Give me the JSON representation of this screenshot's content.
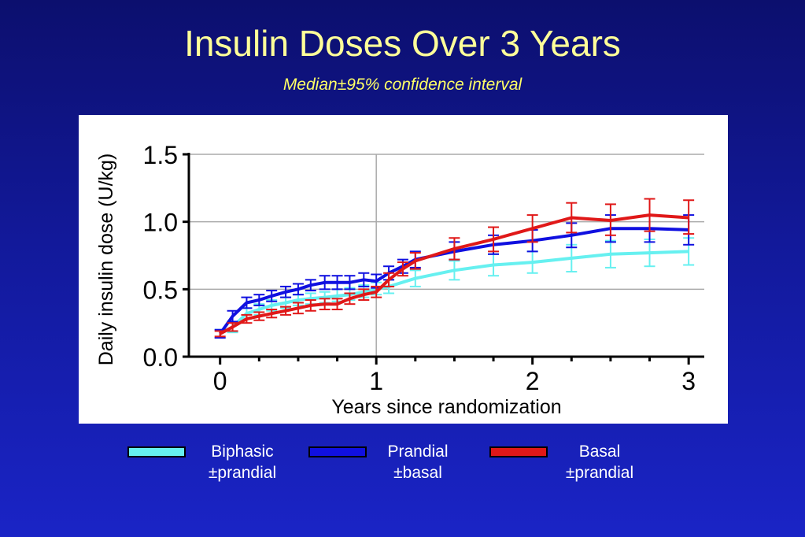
{
  "slide": {
    "title": "Insulin Doses Over 3 Years",
    "subtitle": "Median±95% confidence interval"
  },
  "chart_data": {
    "type": "line",
    "xlabel": "Years since randomization",
    "ylabel": "Daily insulin dose (U/kg)",
    "xlim": [
      -0.2,
      3.1
    ],
    "ylim": [
      0,
      1.5
    ],
    "x_ticks": [
      "0",
      "1",
      "2",
      "3"
    ],
    "y_ticks": [
      "0.0",
      "0.5",
      "1.0",
      "1.5"
    ],
    "grid": "horizontal at 0.5, 1.0, 1.5; vertical at x=1",
    "legend_position": "below",
    "series": [
      {
        "name": "Biphasic ±prandial",
        "color": "#66f0f0",
        "points": [
          {
            "x": 0.0,
            "y": 0.17,
            "lo": 0.14,
            "hi": 0.2
          },
          {
            "x": 0.08,
            "y": 0.22,
            "lo": 0.18,
            "hi": 0.26
          },
          {
            "x": 0.17,
            "y": 0.32,
            "lo": 0.28,
            "hi": 0.36
          },
          {
            "x": 0.25,
            "y": 0.35,
            "lo": 0.31,
            "hi": 0.39
          },
          {
            "x": 0.33,
            "y": 0.38,
            "lo": 0.34,
            "hi": 0.42
          },
          {
            "x": 0.42,
            "y": 0.4,
            "lo": 0.36,
            "hi": 0.44
          },
          {
            "x": 0.5,
            "y": 0.42,
            "lo": 0.38,
            "hi": 0.46
          },
          {
            "x": 0.58,
            "y": 0.43,
            "lo": 0.39,
            "hi": 0.47
          },
          {
            "x": 0.67,
            "y": 0.44,
            "lo": 0.4,
            "hi": 0.48
          },
          {
            "x": 0.75,
            "y": 0.45,
            "lo": 0.41,
            "hi": 0.5
          },
          {
            "x": 0.83,
            "y": 0.46,
            "lo": 0.42,
            "hi": 0.51
          },
          {
            "x": 0.92,
            "y": 0.48,
            "lo": 0.44,
            "hi": 0.53
          },
          {
            "x": 1.0,
            "y": 0.5,
            "lo": 0.46,
            "hi": 0.55
          },
          {
            "x": 1.08,
            "y": 0.52,
            "lo": 0.47,
            "hi": 0.57
          },
          {
            "x": 1.25,
            "y": 0.58,
            "lo": 0.52,
            "hi": 0.64
          },
          {
            "x": 1.5,
            "y": 0.64,
            "lo": 0.57,
            "hi": 0.71
          },
          {
            "x": 1.75,
            "y": 0.68,
            "lo": 0.6,
            "hi": 0.76
          },
          {
            "x": 2.0,
            "y": 0.7,
            "lo": 0.62,
            "hi": 0.78
          },
          {
            "x": 2.25,
            "y": 0.73,
            "lo": 0.63,
            "hi": 0.83
          },
          {
            "x": 2.5,
            "y": 0.76,
            "lo": 0.66,
            "hi": 0.86
          },
          {
            "x": 2.75,
            "y": 0.77,
            "lo": 0.67,
            "hi": 0.87
          },
          {
            "x": 3.0,
            "y": 0.78,
            "lo": 0.68,
            "hi": 0.88
          }
        ]
      },
      {
        "name": "Prandial ±basal",
        "color": "#1010e0",
        "points": [
          {
            "x": 0.0,
            "y": 0.17,
            "lo": 0.14,
            "hi": 0.2
          },
          {
            "x": 0.08,
            "y": 0.3,
            "lo": 0.26,
            "hi": 0.34
          },
          {
            "x": 0.17,
            "y": 0.4,
            "lo": 0.36,
            "hi": 0.44
          },
          {
            "x": 0.25,
            "y": 0.42,
            "lo": 0.38,
            "hi": 0.46
          },
          {
            "x": 0.33,
            "y": 0.45,
            "lo": 0.41,
            "hi": 0.49
          },
          {
            "x": 0.42,
            "y": 0.48,
            "lo": 0.44,
            "hi": 0.52
          },
          {
            "x": 0.5,
            "y": 0.5,
            "lo": 0.46,
            "hi": 0.54
          },
          {
            "x": 0.58,
            "y": 0.53,
            "lo": 0.49,
            "hi": 0.57
          },
          {
            "x": 0.67,
            "y": 0.55,
            "lo": 0.5,
            "hi": 0.6
          },
          {
            "x": 0.75,
            "y": 0.55,
            "lo": 0.5,
            "hi": 0.6
          },
          {
            "x": 0.83,
            "y": 0.55,
            "lo": 0.5,
            "hi": 0.6
          },
          {
            "x": 0.92,
            "y": 0.57,
            "lo": 0.52,
            "hi": 0.62
          },
          {
            "x": 1.0,
            "y": 0.56,
            "lo": 0.51,
            "hi": 0.61
          },
          {
            "x": 1.08,
            "y": 0.62,
            "lo": 0.57,
            "hi": 0.67
          },
          {
            "x": 1.17,
            "y": 0.67,
            "lo": 0.62,
            "hi": 0.72
          },
          {
            "x": 1.25,
            "y": 0.72,
            "lo": 0.66,
            "hi": 0.78
          },
          {
            "x": 1.5,
            "y": 0.78,
            "lo": 0.72,
            "hi": 0.85
          },
          {
            "x": 1.75,
            "y": 0.83,
            "lo": 0.76,
            "hi": 0.9
          },
          {
            "x": 2.0,
            "y": 0.86,
            "lo": 0.78,
            "hi": 0.94
          },
          {
            "x": 2.25,
            "y": 0.9,
            "lo": 0.81,
            "hi": 0.99
          },
          {
            "x": 2.5,
            "y": 0.95,
            "lo": 0.85,
            "hi": 1.05
          },
          {
            "x": 2.75,
            "y": 0.95,
            "lo": 0.85,
            "hi": 1.05
          },
          {
            "x": 3.0,
            "y": 0.94,
            "lo": 0.83,
            "hi": 1.05
          }
        ]
      },
      {
        "name": "Basal ±prandial",
        "color": "#e01818",
        "points": [
          {
            "x": 0.0,
            "y": 0.17,
            "lo": 0.15,
            "hi": 0.19
          },
          {
            "x": 0.08,
            "y": 0.22,
            "lo": 0.19,
            "hi": 0.25
          },
          {
            "x": 0.17,
            "y": 0.28,
            "lo": 0.25,
            "hi": 0.31
          },
          {
            "x": 0.25,
            "y": 0.3,
            "lo": 0.27,
            "hi": 0.33
          },
          {
            "x": 0.33,
            "y": 0.32,
            "lo": 0.29,
            "hi": 0.35
          },
          {
            "x": 0.42,
            "y": 0.34,
            "lo": 0.31,
            "hi": 0.37
          },
          {
            "x": 0.5,
            "y": 0.36,
            "lo": 0.32,
            "hi": 0.4
          },
          {
            "x": 0.58,
            "y": 0.38,
            "lo": 0.34,
            "hi": 0.42
          },
          {
            "x": 0.67,
            "y": 0.39,
            "lo": 0.35,
            "hi": 0.43
          },
          {
            "x": 0.75,
            "y": 0.39,
            "lo": 0.35,
            "hi": 0.43
          },
          {
            "x": 0.83,
            "y": 0.43,
            "lo": 0.39,
            "hi": 0.47
          },
          {
            "x": 0.92,
            "y": 0.46,
            "lo": 0.42,
            "hi": 0.5
          },
          {
            "x": 1.0,
            "y": 0.48,
            "lo": 0.44,
            "hi": 0.52
          },
          {
            "x": 1.08,
            "y": 0.57,
            "lo": 0.52,
            "hi": 0.62
          },
          {
            "x": 1.17,
            "y": 0.65,
            "lo": 0.6,
            "hi": 0.7
          },
          {
            "x": 1.25,
            "y": 0.71,
            "lo": 0.65,
            "hi": 0.77
          },
          {
            "x": 1.5,
            "y": 0.8,
            "lo": 0.72,
            "hi": 0.88
          },
          {
            "x": 1.75,
            "y": 0.87,
            "lo": 0.78,
            "hi": 0.96
          },
          {
            "x": 2.0,
            "y": 0.95,
            "lo": 0.85,
            "hi": 1.05
          },
          {
            "x": 2.25,
            "y": 1.03,
            "lo": 0.92,
            "hi": 1.14
          },
          {
            "x": 2.5,
            "y": 1.01,
            "lo": 0.9,
            "hi": 1.13
          },
          {
            "x": 2.75,
            "y": 1.05,
            "lo": 0.93,
            "hi": 1.17
          },
          {
            "x": 3.0,
            "y": 1.03,
            "lo": 0.91,
            "hi": 1.16
          }
        ]
      }
    ]
  },
  "legend": [
    {
      "line1": "Biphasic",
      "line2": "±prandial",
      "color": "#66f0f0"
    },
    {
      "line1": "Prandial",
      "line2": "±basal",
      "color": "#1010e0"
    },
    {
      "line1": "Basal",
      "line2": "±prandial",
      "color": "#e01818"
    }
  ]
}
